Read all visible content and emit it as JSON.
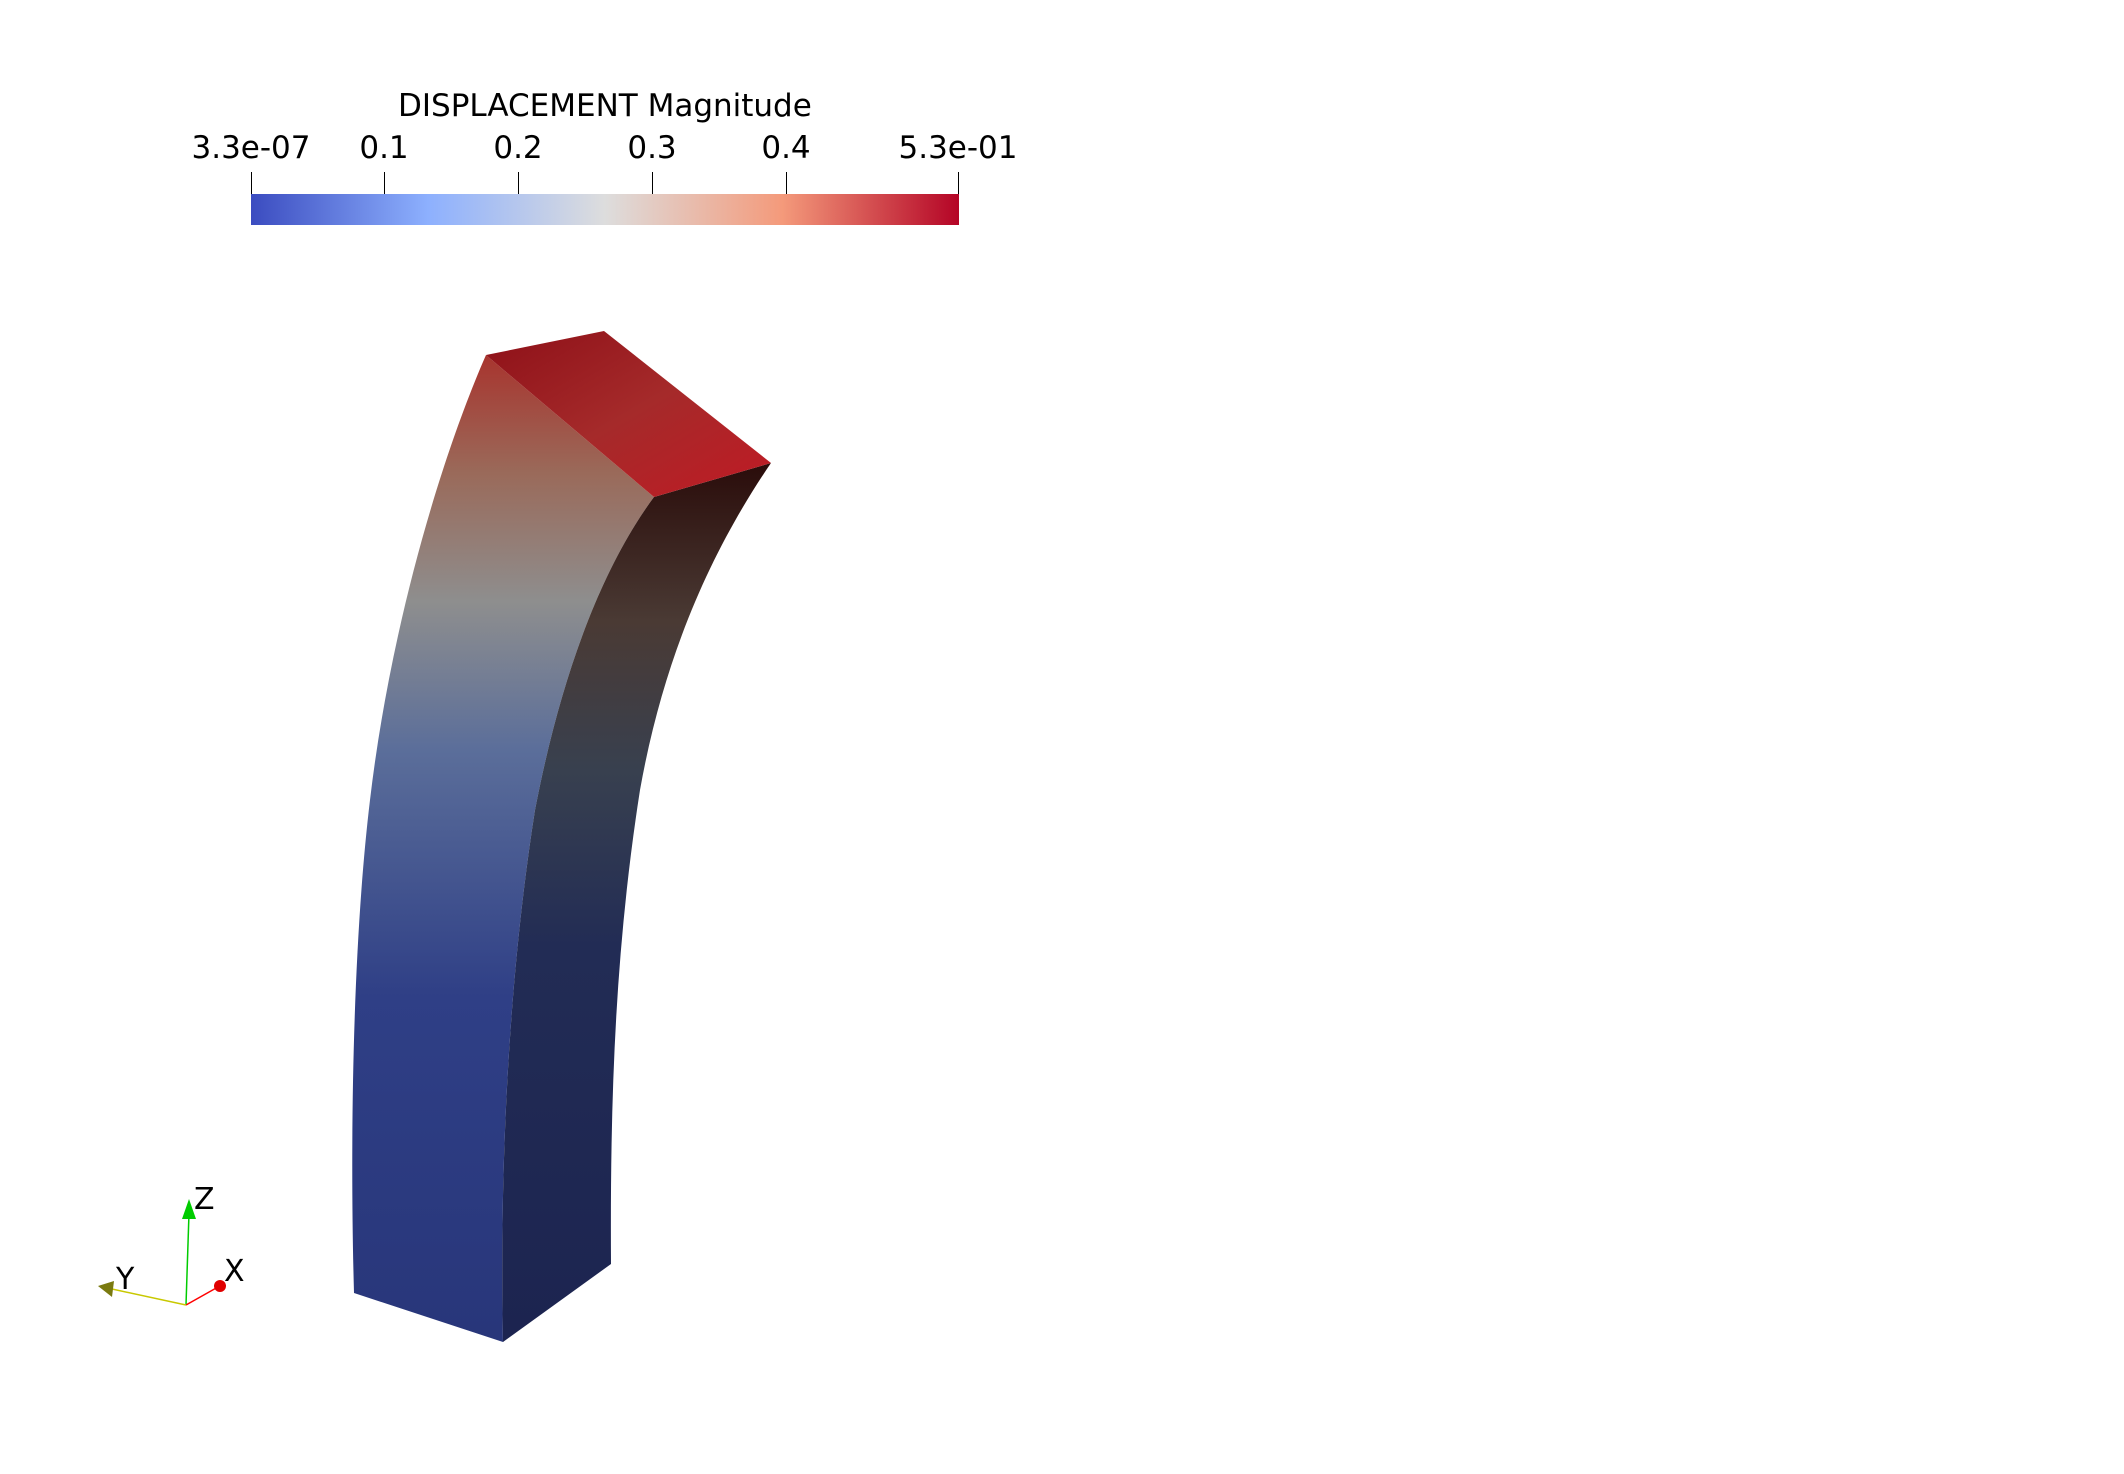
{
  "scalar_bar": {
    "title": "DISPLACEMENT Magnitude",
    "ticks": [
      {
        "label": "3.3e-07",
        "value": 3.3e-07
      },
      {
        "label": "0.1",
        "value": 0.1
      },
      {
        "label": "0.2",
        "value": 0.2
      },
      {
        "label": "0.3",
        "value": 0.3
      },
      {
        "label": "0.4",
        "value": 0.4
      },
      {
        "label": "5.3e-01",
        "value": 0.53
      }
    ],
    "range": [
      3.3e-07,
      0.53
    ],
    "colormap": [
      "#3b4cc0",
      "#8db0fe",
      "#dddddd",
      "#f49a7b",
      "#b40426"
    ]
  },
  "orientation_axes": {
    "x_label": "X",
    "y_label": "Y",
    "z_label": "Z",
    "x_color": "#ff0000",
    "y_color": "#c8c800",
    "z_color": "#00cc00"
  },
  "model": {
    "description_colors": {
      "low": "#283679",
      "high": "#b40426"
    }
  }
}
